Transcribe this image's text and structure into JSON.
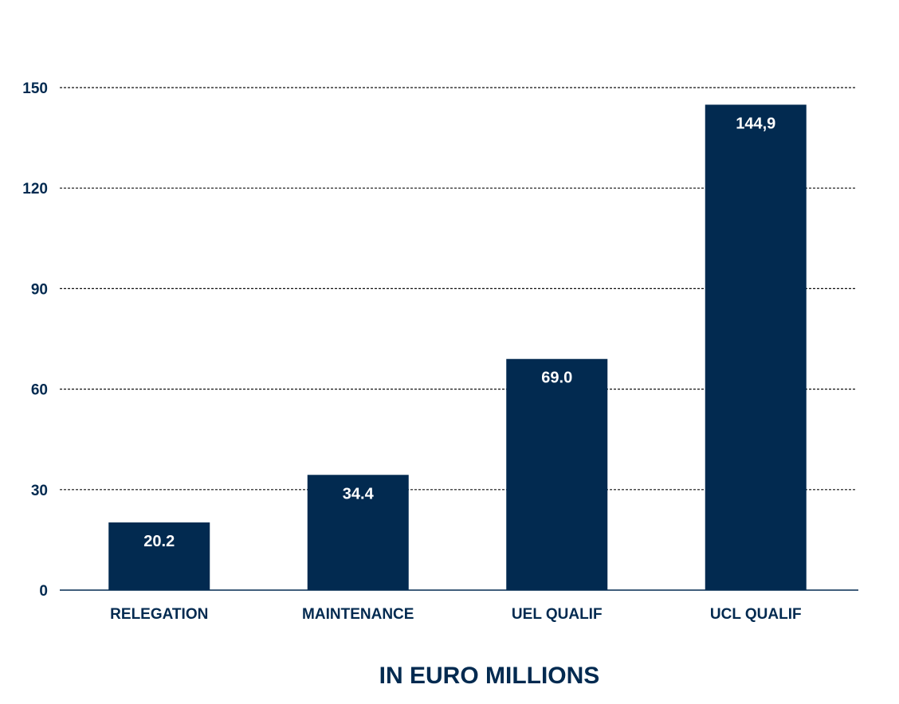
{
  "chart_data": {
    "type": "bar",
    "categories": [
      "RELEGATION",
      "MAINTENANCE",
      "UEL QUALIF",
      "UCL QUALIF"
    ],
    "values": [
      20.2,
      34.4,
      69.0,
      144.9
    ],
    "value_labels": [
      "20.2",
      "34.4",
      "69.0",
      "144,9"
    ],
    "title": "",
    "xlabel": "IN EURO MILLIONS",
    "ylabel": "",
    "ylim": [
      0,
      150
    ],
    "yticks": [
      0,
      30,
      60,
      90,
      120,
      150
    ],
    "grid": true,
    "grid_style": "dashed",
    "legend": "none"
  },
  "colors": {
    "bar": "#022a50",
    "text": "#022a50",
    "grid": "#111111",
    "value_label": "#ffffff"
  }
}
